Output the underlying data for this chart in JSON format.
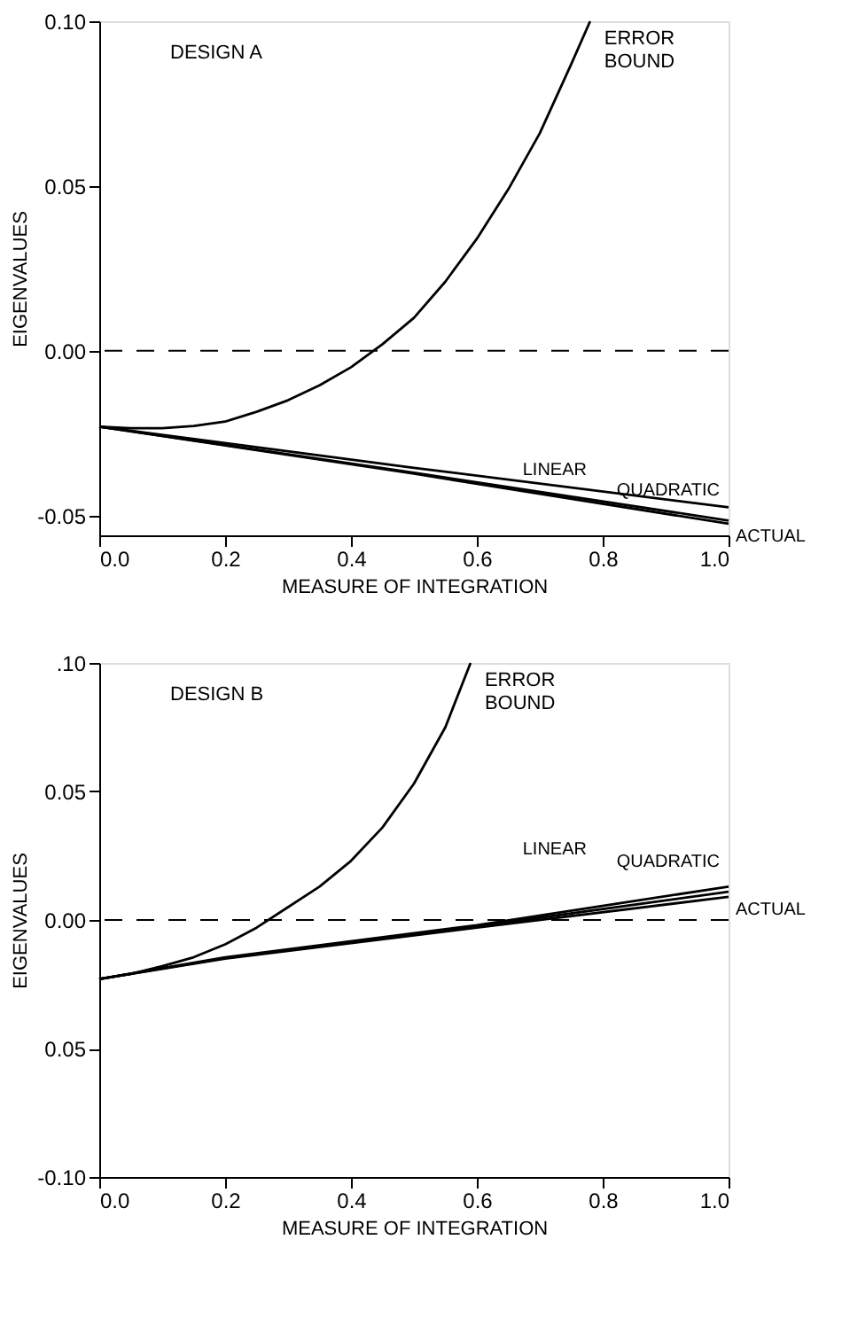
{
  "chart_data": [
    {
      "type": "line",
      "title": "DESIGN A",
      "xlabel": "MEASURE OF INTEGRATION",
      "ylabel": "EIGENVALUES",
      "xlim": [
        0,
        1
      ],
      "ylim": [
        -0.056,
        0.1
      ],
      "xticks": [
        {
          "value": 0,
          "label": "0.0"
        },
        {
          "value": 0.2,
          "label": "0.2"
        },
        {
          "value": 0.4,
          "label": "0.4"
        },
        {
          "value": 0.6,
          "label": "0.6"
        },
        {
          "value": 0.8,
          "label": "0.8"
        },
        {
          "value": 1,
          "label": "1.0"
        }
      ],
      "yticks": [
        {
          "value": -0.05,
          "label": "-0.05"
        },
        {
          "value": 0,
          "label": "0.00"
        },
        {
          "value": 0.05,
          "label": "0.05"
        },
        {
          "value": 0.1,
          "label": "0.10"
        }
      ],
      "grid": false,
      "legend": false,
      "marker": "none",
      "line_style": "solid",
      "series": [
        {
          "name": "ERROR\nBOUND",
          "color": "#000000",
          "x": [
            0,
            0.05,
            0.1,
            0.15,
            0.2,
            0.25,
            0.3,
            0.35,
            0.4,
            0.45,
            0.5,
            0.55,
            0.6,
            0.65,
            0.7,
            0.75,
            0.78
          ],
          "values": [
            -0.023,
            -0.0235,
            -0.0235,
            -0.0228,
            -0.0215,
            -0.0185,
            -0.015,
            -0.0105,
            -0.005,
            0.002,
            0.01,
            0.021,
            0.034,
            0.049,
            0.066,
            0.087,
            0.1
          ]
        },
        {
          "name": "LINEAR",
          "color": "#000000",
          "x": [
            0,
            0.5,
            1
          ],
          "values": [
            -0.023,
            -0.0355,
            -0.0475
          ]
        },
        {
          "name": "QUADRATIC",
          "color": "#000000",
          "x": [
            0,
            0.5,
            1
          ],
          "values": [
            -0.023,
            -0.037,
            -0.0515
          ]
        },
        {
          "name": "ACTUAL",
          "color": "#000000",
          "x": [
            0,
            0.5,
            1
          ],
          "values": [
            -0.023,
            -0.0373,
            -0.0525
          ]
        }
      ],
      "ref_lines": [
        {
          "axis": "y",
          "value": 0,
          "line_style": "dashed",
          "color": "#000000"
        }
      ]
    },
    {
      "type": "line",
      "title": "DESIGN B",
      "xlabel": "MEASURE OF INTEGRATION",
      "ylabel": "EIGENVALUES",
      "xlim": [
        0,
        1
      ],
      "ylim": [
        -0.1,
        0.1
      ],
      "xticks": [
        {
          "value": 0,
          "label": "0.0"
        },
        {
          "value": 0.2,
          "label": "0.2"
        },
        {
          "value": 0.4,
          "label": "0.4"
        },
        {
          "value": 0.6,
          "label": "0.6"
        },
        {
          "value": 0.8,
          "label": "0.8"
        },
        {
          "value": 1,
          "label": "1.0"
        }
      ],
      "yticks": [
        {
          "value": -0.1,
          "label": "-0.10"
        },
        {
          "value": -0.05,
          "label": "0.05"
        },
        {
          "value": 0,
          "label": "0.00"
        },
        {
          "value": 0.05,
          "label": "0.05"
        },
        {
          "value": 0.1,
          "label": ".10"
        }
      ],
      "grid": false,
      "legend": false,
      "marker": "none",
      "line_style": "solid",
      "series": [
        {
          "name": "ERROR\nBOUND",
          "color": "#000000",
          "x": [
            0,
            0.05,
            0.1,
            0.15,
            0.2,
            0.25,
            0.3,
            0.35,
            0.4,
            0.45,
            0.5,
            0.55,
            0.59
          ],
          "values": [
            -0.023,
            -0.021,
            -0.018,
            -0.0145,
            -0.0095,
            -0.003,
            0.005,
            0.013,
            0.023,
            0.036,
            0.053,
            0.075,
            0.1
          ]
        },
        {
          "name": "LINEAR",
          "color": "#000000",
          "x": [
            0,
            0.2,
            0.6,
            1
          ],
          "values": [
            -0.023,
            -0.0145,
            -0.002,
            0.013
          ]
        },
        {
          "name": "QUADRATIC",
          "color": "#000000",
          "x": [
            0,
            0.2,
            0.6,
            1
          ],
          "values": [
            -0.023,
            -0.0148,
            -0.0025,
            0.011
          ]
        },
        {
          "name": "ACTUAL",
          "color": "#000000",
          "x": [
            0,
            0.2,
            0.6,
            1
          ],
          "values": [
            -0.023,
            -0.015,
            -0.003,
            0.009
          ]
        }
      ],
      "ref_lines": [
        {
          "axis": "y",
          "value": 0,
          "line_style": "dashed",
          "color": "#000000"
        }
      ]
    }
  ]
}
